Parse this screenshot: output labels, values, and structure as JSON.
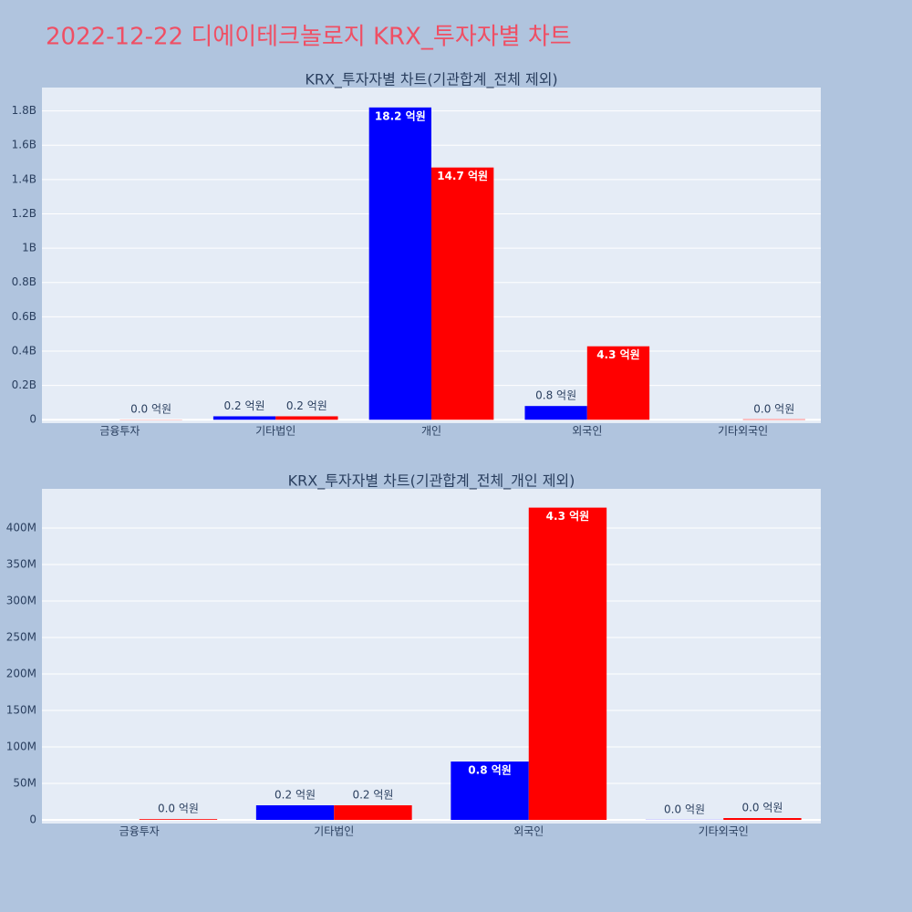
{
  "title": "2022-12-22 디에이테크놀로지 KRX_투자자별 차트",
  "chart_data": [
    {
      "type": "bar",
      "title": "KRX_투자자별 차트(기관합계_전체 제외)",
      "categories": [
        "금융투자",
        "기타법인",
        "개인",
        "외국인",
        "기타외국인"
      ],
      "series": [
        {
          "color": "#0000ff",
          "values": [
            null,
            20000000,
            1820000000,
            80000000,
            null
          ],
          "value_labels": [
            null,
            "0.2 억원",
            "18.2 억원",
            "0.8 억원",
            null
          ]
        },
        {
          "color": "#ff0000",
          "values": [
            1000000,
            20000000,
            1470000000,
            428000000,
            2500000
          ],
          "value_labels": [
            "0.0 억원",
            "0.2 억원",
            "14.7 억원",
            "4.3 억원",
            "0.0 억원"
          ]
        }
      ],
      "ylim": [
        -20000000,
        1936000000
      ],
      "yticks": [
        0,
        {
          "value": 200000000,
          "label": "0.2B"
        },
        {
          "value": 400000000,
          "label": "0.4B"
        },
        {
          "value": 600000000,
          "label": "0.6B"
        },
        {
          "value": 800000000,
          "label": "0.8B"
        },
        {
          "value": 1000000000,
          "label": "1B"
        },
        {
          "value": 1200000000,
          "label": "1.2B"
        },
        {
          "value": 1400000000,
          "label": "1.4B"
        },
        {
          "value": 1600000000,
          "label": "1.6B"
        },
        {
          "value": 1800000000,
          "label": "1.8B"
        }
      ],
      "grid": true
    },
    {
      "type": "bar",
      "title": "KRX_투자자별 차트(기관합계_전체_개인 제외)",
      "categories": [
        "금융투자",
        "기타법인",
        "외국인",
        "기타외국인"
      ],
      "series": [
        {
          "color": "#0000ff",
          "values": [
            null,
            20000000,
            80000000,
            200000
          ],
          "value_labels": [
            null,
            "0.2 억원",
            "0.8 억원",
            "0.0 억원"
          ]
        },
        {
          "color": "#ff0000",
          "values": [
            1000000,
            20000000,
            428000000,
            2500000
          ],
          "value_labels": [
            "0.0 억원",
            "0.2 억원",
            "4.3 억원",
            "0.0 억원"
          ]
        }
      ],
      "ylim": [
        -5000000,
        453750000
      ],
      "yticks": [
        0,
        {
          "value": 50000000,
          "label": "50M"
        },
        {
          "value": 100000000,
          "label": "100M"
        },
        {
          "value": 150000000,
          "label": "150M"
        },
        {
          "value": 200000000,
          "label": "200M"
        },
        {
          "value": 250000000,
          "label": "250M"
        },
        {
          "value": 300000000,
          "label": "300M"
        },
        {
          "value": 350000000,
          "label": "350M"
        },
        {
          "value": 400000000,
          "label": "400M"
        }
      ],
      "grid": true
    }
  ]
}
